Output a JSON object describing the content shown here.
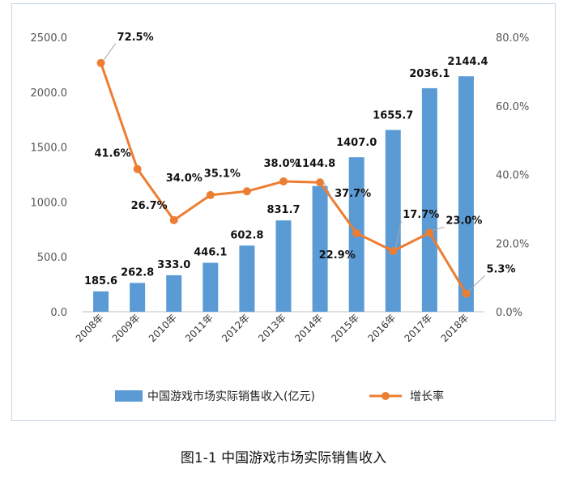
{
  "caption": "图1-1  中国游戏市场实际销售收入",
  "chart_data": {
    "type": "bar+line",
    "categories": [
      "2008年",
      "2009年",
      "2010年",
      "2011年",
      "2012年",
      "2013年",
      "2014年",
      "2015年",
      "2016年",
      "2017年",
      "2018年"
    ],
    "series": [
      {
        "name": "中国游戏市场实际销售收入(亿元)",
        "type": "bar",
        "axis": "left",
        "values": [
          185.6,
          262.8,
          333.0,
          446.1,
          602.8,
          831.7,
          1144.8,
          1407.0,
          1655.7,
          2036.1,
          2144.4
        ],
        "labels": [
          "185.6",
          "262.8",
          "333.0",
          "446.1",
          "602.8",
          "831.7",
          "1144.8",
          "1407.0",
          "1655.7",
          "2036.1",
          "2144.4"
        ],
        "color": "#5b9bd5"
      },
      {
        "name": "增长率",
        "type": "line",
        "axis": "right",
        "values": [
          72.5,
          41.6,
          26.7,
          34.0,
          35.1,
          38.0,
          37.7,
          22.9,
          17.7,
          23.0,
          5.3
        ],
        "labels": [
          "72.5%",
          "41.6%",
          "26.7%",
          "34.0%",
          "35.1%",
          "38.0%",
          "37.7%",
          "22.9%",
          "17.7%",
          "23.0%",
          "5.3%"
        ],
        "color": "#ed7d31"
      }
    ],
    "y_left": {
      "min": 0,
      "max": 2500,
      "ticks": [
        "0.0",
        "500.0",
        "1000.0",
        "1500.0",
        "2000.0",
        "2500.0"
      ]
    },
    "y_right": {
      "min": 0,
      "max": 80,
      "ticks": [
        "0.0%",
        "20.0%",
        "40.0%",
        "60.0%",
        "80.0%"
      ]
    },
    "legend_position": "bottom",
    "grid": false
  }
}
